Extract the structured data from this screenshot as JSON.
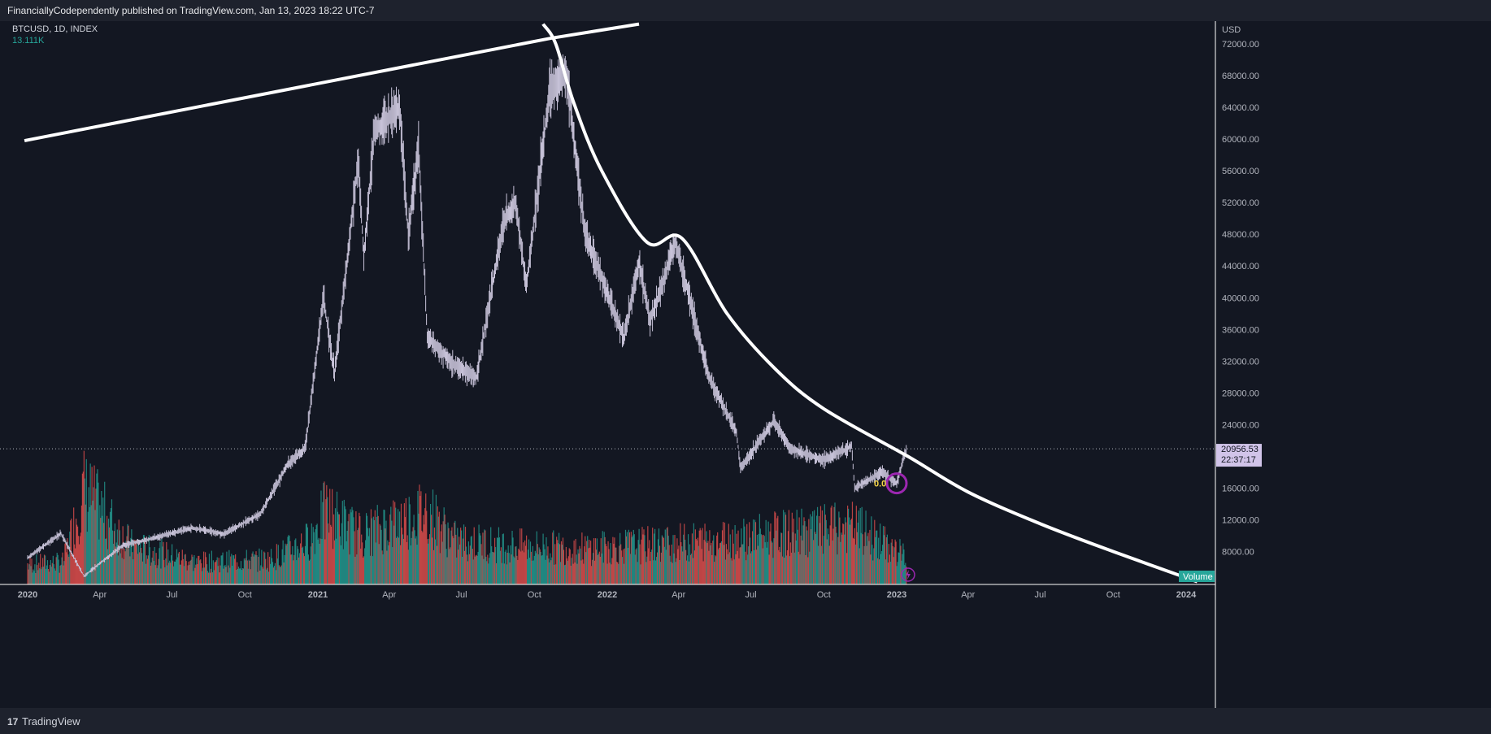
{
  "header": {
    "published_text": "FinanciallyCodependently published on TradingView.com, Jan 13, 2023 18:22 UTC-7"
  },
  "footer": {
    "logo_mark": "17",
    "logo_text": "TradingView",
    "logo_icon": "tradingview-logo-icon"
  },
  "legend": {
    "symbol": "BTCUSD, 1D, INDEX",
    "volume": "13.111K"
  },
  "price_label": {
    "price": "20956.53",
    "countdown": "22:37:17",
    "currency": "USD"
  },
  "annotation": {
    "text": "0.0"
  },
  "colors": {
    "background": "#131722",
    "candle": "#c7c2d8",
    "volume_up": "#26a69a",
    "volume_down": "#ef5350",
    "trendline": "#ffffff",
    "volume_tag": "#26a69a",
    "price_tag": "#d1c4e9",
    "circle": "#9c27b0",
    "annotation": "#f5d547"
  },
  "chart_data": {
    "type": "candlestick",
    "symbol": "BTCUSD",
    "interval": "1D",
    "currency": "USD",
    "y_ticks": [
      8000,
      12000,
      16000,
      20000,
      24000,
      28000,
      32000,
      36000,
      40000,
      44000,
      48000,
      52000,
      56000,
      60000,
      64000,
      68000,
      72000
    ],
    "y_tick_labels": [
      "8000.00",
      "12000.00",
      "16000.00",
      "20000.00",
      "24000.00",
      "28000.00",
      "32000.00",
      "36000.00",
      "40000.00",
      "44000.00",
      "48000.00",
      "52000.00",
      "56000.00",
      "60000.00",
      "64000.00",
      "68000.00",
      "72000.00"
    ],
    "x_ticks": [
      "2020-01-01",
      "2020-04-01",
      "2020-07-01",
      "2020-10-01",
      "2021-01-01",
      "2021-04-01",
      "2021-07-01",
      "2021-10-01",
      "2022-01-01",
      "2022-04-01",
      "2022-07-01",
      "2022-10-01",
      "2023-01-01",
      "2023-04-01",
      "2023-07-01",
      "2023-10-01",
      "2024-01-01"
    ],
    "x_tick_labels": [
      "2020",
      "Apr",
      "Jul",
      "Oct",
      "2021",
      "Apr",
      "Jul",
      "Oct",
      "2022",
      "Apr",
      "Jul",
      "Oct",
      "2023",
      "Apr",
      "Jul",
      "Oct",
      "2024"
    ],
    "last_price": 20956.53,
    "series": [
      {
        "type": "price",
        "points": [
          [
            "2020-01-01",
            7200
          ],
          [
            "2020-02-12",
            10300
          ],
          [
            "2020-03-12",
            4900
          ],
          [
            "2020-04-30",
            8800
          ],
          [
            "2020-06-01",
            9500
          ],
          [
            "2020-07-27",
            11000
          ],
          [
            "2020-09-04",
            10200
          ],
          [
            "2020-10-21",
            12800
          ],
          [
            "2020-11-24",
            19000
          ],
          [
            "2020-12-16",
            21000
          ],
          [
            "2021-01-08",
            40000
          ],
          [
            "2021-01-22",
            30500
          ],
          [
            "2021-02-21",
            57500
          ],
          [
            "2021-02-28",
            45000
          ],
          [
            "2021-03-13",
            61000
          ],
          [
            "2021-04-14",
            64000
          ],
          [
            "2021-04-25",
            48000
          ],
          [
            "2021-05-08",
            59000
          ],
          [
            "2021-05-19",
            35000
          ],
          [
            "2021-06-22",
            31500
          ],
          [
            "2021-07-20",
            30000
          ],
          [
            "2021-08-23",
            49500
          ],
          [
            "2021-09-07",
            52000
          ],
          [
            "2021-09-21",
            41500
          ],
          [
            "2021-10-20",
            66000
          ],
          [
            "2021-11-10",
            68500
          ],
          [
            "2021-12-04",
            48000
          ],
          [
            "2022-01-22",
            35000
          ],
          [
            "2022-02-10",
            44500
          ],
          [
            "2022-02-24",
            37000
          ],
          [
            "2022-03-28",
            47000
          ],
          [
            "2022-05-09",
            30000
          ],
          [
            "2022-06-13",
            23000
          ],
          [
            "2022-06-18",
            18500
          ],
          [
            "2022-07-30",
            24500
          ],
          [
            "2022-08-19",
            21000
          ],
          [
            "2022-09-30",
            19500
          ],
          [
            "2022-11-05",
            21300
          ],
          [
            "2022-11-09",
            16000
          ],
          [
            "2022-12-14",
            18000
          ],
          [
            "2023-01-01",
            16600
          ],
          [
            "2023-01-13",
            20956
          ]
        ]
      },
      {
        "type": "volume",
        "points": [
          [
            "2020-01-01",
            7600
          ],
          [
            "2020-02-15",
            8000
          ],
          [
            "2020-03-12",
            21500
          ],
          [
            "2020-05-10",
            11000
          ],
          [
            "2020-08-01",
            8000
          ],
          [
            "2020-11-01",
            8500
          ],
          [
            "2020-12-20",
            12000
          ],
          [
            "2021-01-11",
            17500
          ],
          [
            "2021-02-23",
            13000
          ],
          [
            "2021-05-19",
            17500
          ],
          [
            "2021-06-22",
            12000
          ],
          [
            "2021-09-07",
            11000
          ],
          [
            "2021-12-04",
            10500
          ],
          [
            "2022-05-12",
            12000
          ],
          [
            "2022-06-13",
            12500
          ],
          [
            "2022-11-09",
            14500
          ],
          [
            "2023-01-13",
            9000
          ]
        ]
      },
      {
        "type": "trendline-upper",
        "points": [
          [
            "2019-12-28",
            59800
          ],
          [
            "2021-10-21",
            72700
          ],
          [
            "2022-02-10",
            74500
          ]
        ]
      },
      {
        "type": "trendline-curve",
        "points": [
          [
            "2021-10-12",
            74500
          ],
          [
            "2021-10-28",
            72000
          ],
          [
            "2021-11-20",
            64500
          ],
          [
            "2021-12-25",
            56000
          ],
          [
            "2022-02-20",
            47000
          ],
          [
            "2022-04-05",
            47500
          ],
          [
            "2022-06-01",
            38000
          ],
          [
            "2022-08-01",
            31000
          ],
          [
            "2022-10-01",
            26000
          ],
          [
            "2023-01-15",
            20000
          ],
          [
            "2023-04-01",
            15500
          ],
          [
            "2023-07-01",
            11500
          ],
          [
            "2023-10-01",
            8000
          ],
          [
            "2024-01-15",
            4200
          ]
        ]
      }
    ]
  }
}
